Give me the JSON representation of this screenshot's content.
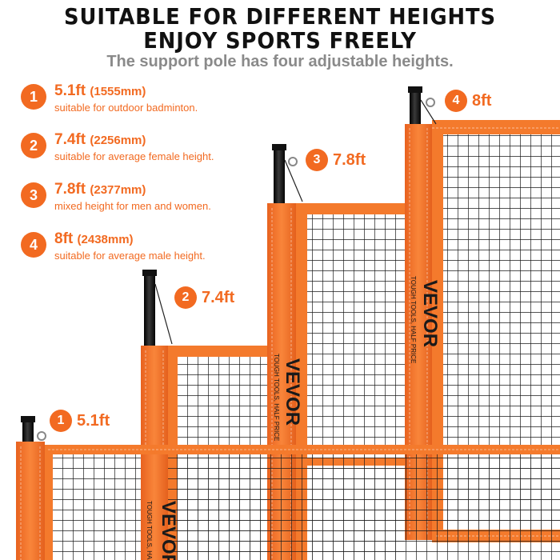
{
  "header": {
    "title_line1": "SUITABLE FOR DIFFERENT HEIGHTS",
    "title_line2": "ENJOY SPORTS FREELY",
    "subtitle": "The support pole has four adjustable heights."
  },
  "options": [
    {
      "number": "1",
      "height": "5.1ft",
      "metric": "(1555mm)",
      "desc": "suitable for outdoor badminton."
    },
    {
      "number": "2",
      "height": "7.4ft",
      "metric": "(2256mm)",
      "desc": "suitable for average female height."
    },
    {
      "number": "3",
      "height": "7.8ft",
      "metric": "(2377mm)",
      "desc": "mixed height for men and women."
    },
    {
      "number": "4",
      "height": "8ft",
      "metric": "(2438mm)",
      "desc": "suitable for average male height."
    }
  ],
  "nets": [
    {
      "number": "1",
      "label": "5.1ft"
    },
    {
      "number": "2",
      "label": "7.4ft"
    },
    {
      "number": "3",
      "label": "7.8ft"
    },
    {
      "number": "4",
      "label": "8ft"
    }
  ],
  "brand": {
    "name": "VEVOR",
    "tagline": "TOUGH TOOLS, HALF PRICE"
  },
  "colors": {
    "accent": "#f26a21",
    "sleeve": "#f47a2c",
    "pole": "#151515",
    "mesh": "#1a1a1a"
  }
}
